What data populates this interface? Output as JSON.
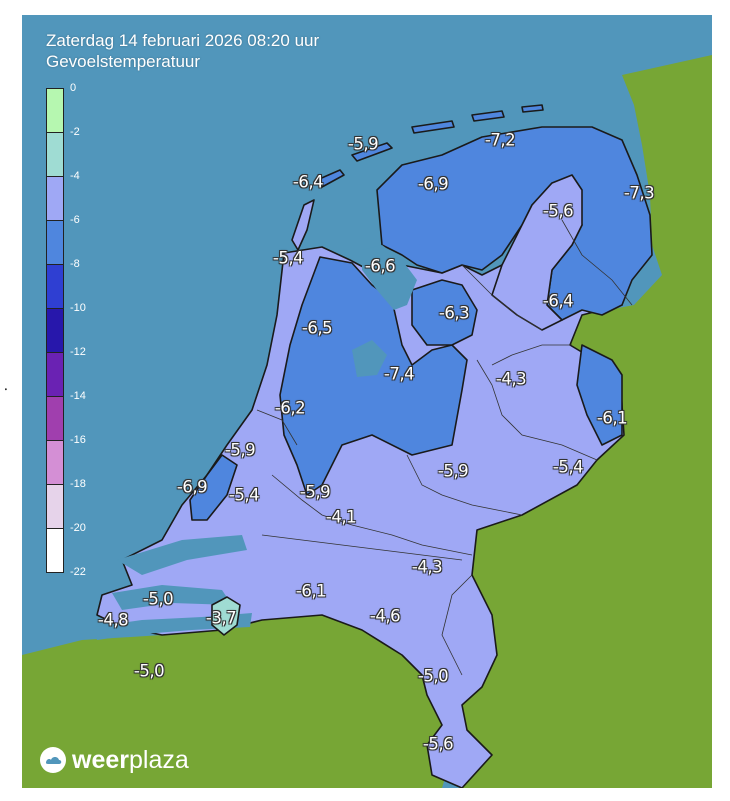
{
  "header": {
    "datetime": "Zaterdag 14 februari 2026 08:20 uur",
    "variable": "Gevoelstemperatuur"
  },
  "legend": {
    "ticks": [
      "0",
      "-2",
      "-4",
      "-6",
      "-8",
      "-10",
      "-12",
      "-14",
      "-16",
      "-18",
      "-20",
      "-22"
    ],
    "bands": [
      {
        "from": 0,
        "to": -2,
        "color": "#b6f7b0"
      },
      {
        "from": -2,
        "to": -4,
        "color": "#9fdcd3"
      },
      {
        "from": -4,
        "to": -6,
        "color": "#9fa8f5"
      },
      {
        "from": -6,
        "to": -8,
        "color": "#4f86de"
      },
      {
        "from": -8,
        "to": -10,
        "color": "#2f3fd2"
      },
      {
        "from": -10,
        "to": -12,
        "color": "#2717ab"
      },
      {
        "from": -12,
        "to": -14,
        "color": "#6a22b3"
      },
      {
        "from": -14,
        "to": -16,
        "color": "#a03fae"
      },
      {
        "from": -16,
        "to": -18,
        "color": "#d48fd5"
      },
      {
        "from": -18,
        "to": -20,
        "color": "#e6d3ea"
      },
      {
        "from": -20,
        "to": -22,
        "color": "#ffffff"
      }
    ]
  },
  "colors": {
    "sea": "#5196bb",
    "land_outside": "#77a635",
    "zone_light": "#9fa8f5",
    "zone_mid": "#4f86de",
    "zone_green": "#9fdcd3",
    "border": "#1a1a1a"
  },
  "values": [
    {
      "id": "schiermonnikoog",
      "text": "-7,2"
    },
    {
      "id": "vlieland",
      "text": "-5,9"
    },
    {
      "id": "texel",
      "text": "-6,4"
    },
    {
      "id": "friesland",
      "text": "-6,9"
    },
    {
      "id": "groningen-east",
      "text": "-7,3"
    },
    {
      "id": "drenthe-north",
      "text": "-5,6"
    },
    {
      "id": "den-helder",
      "text": "-5,4"
    },
    {
      "id": "ijsselmeer-north",
      "text": "-6,6"
    },
    {
      "id": "noordoostpolder",
      "text": "-6,3"
    },
    {
      "id": "drenthe-south",
      "text": "-6,4"
    },
    {
      "id": "noord-holland",
      "text": "-6,5"
    },
    {
      "id": "flevoland",
      "text": "-7,4"
    },
    {
      "id": "overijssel",
      "text": "-4,3"
    },
    {
      "id": "amsterdam",
      "text": "-6,2"
    },
    {
      "id": "twente",
      "text": "-6,1"
    },
    {
      "id": "leiden",
      "text": "-5,9"
    },
    {
      "id": "veluwe",
      "text": "-5,9"
    },
    {
      "id": "achterhoek",
      "text": "-5,4"
    },
    {
      "id": "den-haag",
      "text": "-6,9"
    },
    {
      "id": "zoetermeer",
      "text": "-5,4"
    },
    {
      "id": "utrecht",
      "text": "-5,9"
    },
    {
      "id": "rivierenland",
      "text": "-4,1"
    },
    {
      "id": "oost-brabant",
      "text": "-4,3"
    },
    {
      "id": "west-brabant",
      "text": "-6,1"
    },
    {
      "id": "goeree",
      "text": "-5,0"
    },
    {
      "id": "walcheren",
      "text": "-4,8"
    },
    {
      "id": "bergen-op-zoom",
      "text": "-3,7"
    },
    {
      "id": "midden-brabant",
      "text": "-4,6"
    },
    {
      "id": "zeeuws-vlaanderen",
      "text": "-5,0"
    },
    {
      "id": "limburg-north",
      "text": "-5,0"
    },
    {
      "id": "limburg-south",
      "text": "-5,6"
    }
  ],
  "brand": {
    "name_bold": "weer",
    "name_light": "plaza"
  }
}
